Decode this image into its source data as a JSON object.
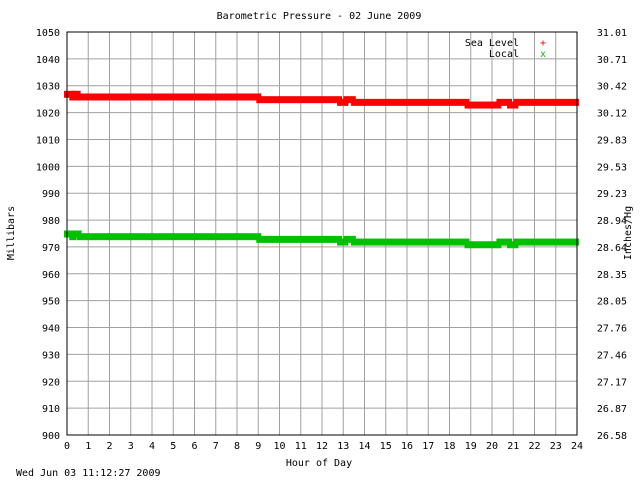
{
  "chart_data": {
    "type": "scatter",
    "title": "Barometric Pressure - 02 June 2009",
    "xlabel": "Hour of Day",
    "ylabel": "Millibars",
    "y2label": "Inches/Hg",
    "footer": "Wed Jun 03 11:12:27 2009",
    "xlim": [
      0,
      24
    ],
    "ylim": [
      900,
      1050
    ],
    "grid": true,
    "legend_position": "top-right",
    "x_ticks": [
      "0",
      "1",
      "2",
      "3",
      "4",
      "5",
      "6",
      "7",
      "8",
      "9",
      "10",
      "11",
      "12",
      "13",
      "14",
      "15",
      "16",
      "17",
      "18",
      "19",
      "20",
      "21",
      "22",
      "23",
      "24"
    ],
    "y_ticks": [
      "900",
      "910",
      "920",
      "930",
      "940",
      "950",
      "960",
      "970",
      "980",
      "990",
      "1000",
      "1010",
      "1020",
      "1030",
      "1040",
      "1050"
    ],
    "y2_ticks": [
      "26.58",
      "26.87",
      "27.17",
      "27.46",
      "27.76",
      "28.05",
      "28.35",
      "28.64",
      "28.94",
      "29.23",
      "29.53",
      "29.83",
      "30.12",
      "30.42",
      "30.71",
      "31.01"
    ],
    "series": [
      {
        "name": "Sea Level",
        "marker": "+",
        "color": "#ff0000",
        "segments": [
          {
            "x": [
              0.0,
              0.25
            ],
            "y": 1027
          },
          {
            "x": [
              0.25,
              0.3
            ],
            "y": 1026
          },
          {
            "x": [
              0.35,
              0.5
            ],
            "y": 1027
          },
          {
            "x": [
              0.55,
              9.0
            ],
            "y": 1026
          },
          {
            "x": [
              9.05,
              12.8
            ],
            "y": 1025
          },
          {
            "x": [
              12.85,
              13.1
            ],
            "y": 1024
          },
          {
            "x": [
              13.15,
              13.45
            ],
            "y": 1025
          },
          {
            "x": [
              13.5,
              18.8
            ],
            "y": 1024
          },
          {
            "x": [
              18.85,
              20.3
            ],
            "y": 1023
          },
          {
            "x": [
              20.35,
              20.8
            ],
            "y": 1024
          },
          {
            "x": [
              20.85,
              21.1
            ],
            "y": 1023
          },
          {
            "x": [
              21.15,
              23.95
            ],
            "y": 1024
          }
        ]
      },
      {
        "name": "Local",
        "marker": "x",
        "color": "#00c000",
        "segments": [
          {
            "x": [
              0.0,
              0.25
            ],
            "y": 975
          },
          {
            "x": [
              0.25,
              0.3
            ],
            "y": 974
          },
          {
            "x": [
              0.35,
              0.55
            ],
            "y": 975
          },
          {
            "x": [
              0.6,
              9.0
            ],
            "y": 974
          },
          {
            "x": [
              9.05,
              12.8
            ],
            "y": 973
          },
          {
            "x": [
              12.85,
              13.1
            ],
            "y": 972
          },
          {
            "x": [
              13.15,
              13.45
            ],
            "y": 973
          },
          {
            "x": [
              13.5,
              18.8
            ],
            "y": 972
          },
          {
            "x": [
              18.85,
              20.3
            ],
            "y": 971
          },
          {
            "x": [
              20.35,
              20.8
            ],
            "y": 972
          },
          {
            "x": [
              20.85,
              21.1
            ],
            "y": 971
          },
          {
            "x": [
              21.15,
              23.95
            ],
            "y": 972
          }
        ]
      }
    ]
  }
}
